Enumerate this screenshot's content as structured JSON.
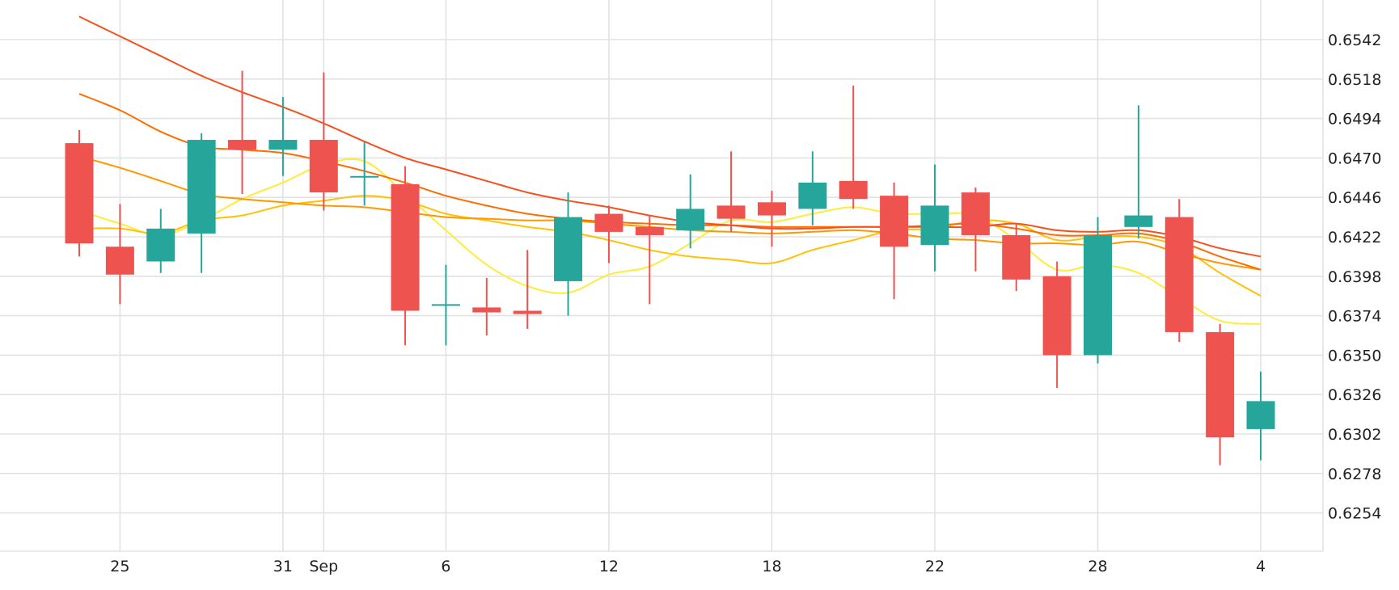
{
  "chart_data": {
    "type": "candlestick",
    "title": "",
    "xlabel": "",
    "ylabel": "",
    "grid": true,
    "colors": {
      "up": "#26a69a",
      "down": "#ef5350",
      "grid": "#e2e2e2"
    },
    "y_ticks": [
      0.6254,
      0.6278,
      0.6302,
      0.6326,
      0.635,
      0.6374,
      0.6398,
      0.6422,
      0.6446,
      0.647,
      0.6494,
      0.6518,
      0.6542
    ],
    "x_ticks": [
      {
        "label": "25",
        "day": 1
      },
      {
        "label": "31",
        "day": 5
      },
      {
        "label": "Sep",
        "day": 6
      },
      {
        "label": "6",
        "day": 9
      },
      {
        "label": "12",
        "day": 13
      },
      {
        "label": "18",
        "day": 17
      },
      {
        "label": "22",
        "day": 21
      },
      {
        "label": "28",
        "day": 25
      },
      {
        "label": "4",
        "day": 29
      }
    ],
    "candles": [
      {
        "day": 0,
        "o": 0.6479,
        "h": 0.6487,
        "l": 0.641,
        "c": 0.6418
      },
      {
        "day": 1,
        "o": 0.6416,
        "h": 0.6442,
        "l": 0.6381,
        "c": 0.6399
      },
      {
        "day": 2,
        "o": 0.6407,
        "h": 0.6439,
        "l": 0.64,
        "c": 0.6427
      },
      {
        "day": 3,
        "o": 0.6424,
        "h": 0.6485,
        "l": 0.64,
        "c": 0.6481
      },
      {
        "day": 4,
        "o": 0.6481,
        "h": 0.6523,
        "l": 0.6448,
        "c": 0.6475
      },
      {
        "day": 5,
        "o": 0.6475,
        "h": 0.6507,
        "l": 0.6459,
        "c": 0.6481
      },
      {
        "day": 6,
        "o": 0.6481,
        "h": 0.6522,
        "l": 0.6438,
        "c": 0.6449
      },
      {
        "day": 7,
        "o": 0.6459,
        "h": 0.648,
        "l": 0.6441,
        "c": 0.6459
      },
      {
        "day": 8,
        "o": 0.6454,
        "h": 0.6465,
        "l": 0.6356,
        "c": 0.6377
      },
      {
        "day": 9,
        "o": 0.6381,
        "h": 0.6405,
        "l": 0.6356,
        "c": 0.6381
      },
      {
        "day": 10,
        "o": 0.6379,
        "h": 0.6397,
        "l": 0.6362,
        "c": 0.6376
      },
      {
        "day": 11,
        "o": 0.6377,
        "h": 0.6414,
        "l": 0.6366,
        "c": 0.6375
      },
      {
        "day": 12,
        "o": 0.6395,
        "h": 0.6449,
        "l": 0.6374,
        "c": 0.6434
      },
      {
        "day": 13,
        "o": 0.6436,
        "h": 0.6441,
        "l": 0.6406,
        "c": 0.6425
      },
      {
        "day": 14,
        "o": 0.6428,
        "h": 0.6435,
        "l": 0.6381,
        "c": 0.6423
      },
      {
        "day": 15,
        "o": 0.6426,
        "h": 0.646,
        "l": 0.6415,
        "c": 0.6439
      },
      {
        "day": 16,
        "o": 0.6441,
        "h": 0.6474,
        "l": 0.6425,
        "c": 0.6433
      },
      {
        "day": 17,
        "o": 0.6443,
        "h": 0.645,
        "l": 0.6416,
        "c": 0.6435
      },
      {
        "day": 18,
        "o": 0.6439,
        "h": 0.6474,
        "l": 0.6429,
        "c": 0.6455
      },
      {
        "day": 19,
        "o": 0.6456,
        "h": 0.6514,
        "l": 0.6439,
        "c": 0.6445
      },
      {
        "day": 20,
        "o": 0.6447,
        "h": 0.6455,
        "l": 0.6384,
        "c": 0.6416
      },
      {
        "day": 21,
        "o": 0.6417,
        "h": 0.6466,
        "l": 0.6401,
        "c": 0.6441
      },
      {
        "day": 22,
        "o": 0.6449,
        "h": 0.6452,
        "l": 0.6401,
        "c": 0.6423
      },
      {
        "day": 23,
        "o": 0.6423,
        "h": 0.643,
        "l": 0.6389,
        "c": 0.6396
      },
      {
        "day": 24,
        "o": 0.6398,
        "h": 0.6407,
        "l": 0.633,
        "c": 0.635
      },
      {
        "day": 25,
        "o": 0.635,
        "h": 0.6434,
        "l": 0.6345,
        "c": 0.6423
      },
      {
        "day": 26,
        "o": 0.6428,
        "h": 0.6502,
        "l": 0.6421,
        "c": 0.6435
      },
      {
        "day": 27,
        "o": 0.6434,
        "h": 0.6445,
        "l": 0.6358,
        "c": 0.6364
      },
      {
        "day": 28,
        "o": 0.6364,
        "h": 0.6369,
        "l": 0.6283,
        "c": 0.63
      },
      {
        "day": 29,
        "o": 0.6305,
        "h": 0.634,
        "l": 0.6286,
        "c": 0.6322
      }
    ],
    "series": [
      {
        "type": "line",
        "color": "#ffeb3b",
        "values": [
          [
            0,
            0.6438
          ],
          [
            1,
            0.643
          ],
          [
            2,
            0.6423
          ],
          [
            3,
            0.6432
          ],
          [
            4,
            0.6445
          ],
          [
            5,
            0.6455
          ],
          [
            6,
            0.6466
          ],
          [
            7,
            0.6468
          ],
          [
            8,
            0.6448
          ],
          [
            9,
            0.6426
          ],
          [
            10,
            0.6405
          ],
          [
            11,
            0.6392
          ],
          [
            12,
            0.6388
          ],
          [
            13,
            0.6399
          ],
          [
            14,
            0.6404
          ],
          [
            15,
            0.6418
          ],
          [
            16,
            0.6432
          ],
          [
            17,
            0.6431
          ],
          [
            18,
            0.6436
          ],
          [
            19,
            0.644
          ],
          [
            20,
            0.6436
          ],
          [
            21,
            0.6436
          ],
          [
            22,
            0.6435
          ],
          [
            23,
            0.642
          ],
          [
            24,
            0.6402
          ],
          [
            25,
            0.6405
          ],
          [
            26,
            0.64
          ],
          [
            27,
            0.6385
          ],
          [
            28,
            0.6371
          ],
          [
            29,
            0.6369
          ]
        ]
      },
      {
        "type": "line",
        "color": "#ffc107",
        "values": [
          [
            0,
            0.6427
          ],
          [
            1,
            0.6427
          ],
          [
            2,
            0.6424
          ],
          [
            3,
            0.6432
          ],
          [
            4,
            0.6435
          ],
          [
            5,
            0.6441
          ],
          [
            6,
            0.6444
          ],
          [
            7,
            0.6447
          ],
          [
            8,
            0.6444
          ],
          [
            9,
            0.6436
          ],
          [
            10,
            0.6432
          ],
          [
            11,
            0.6428
          ],
          [
            12,
            0.6425
          ],
          [
            13,
            0.642
          ],
          [
            14,
            0.6414
          ],
          [
            15,
            0.641
          ],
          [
            16,
            0.6408
          ],
          [
            17,
            0.6406
          ],
          [
            18,
            0.6414
          ],
          [
            19,
            0.642
          ],
          [
            20,
            0.6426
          ],
          [
            21,
            0.6427
          ],
          [
            22,
            0.6432
          ],
          [
            23,
            0.643
          ],
          [
            24,
            0.642
          ],
          [
            25,
            0.6422
          ],
          [
            26,
            0.6422
          ],
          [
            27,
            0.6416
          ],
          [
            28,
            0.64
          ],
          [
            29,
            0.6386
          ]
        ]
      },
      {
        "type": "line",
        "color": "#ff9800",
        "values": [
          [
            0,
            0.6471
          ],
          [
            1,
            0.6464
          ],
          [
            2,
            0.6456
          ],
          [
            3,
            0.6448
          ],
          [
            4,
            0.6445
          ],
          [
            5,
            0.6443
          ],
          [
            6,
            0.6441
          ],
          [
            7,
            0.644
          ],
          [
            8,
            0.6437
          ],
          [
            9,
            0.6434
          ],
          [
            10,
            0.6433
          ],
          [
            11,
            0.6432
          ],
          [
            12,
            0.6432
          ],
          [
            13,
            0.643
          ],
          [
            14,
            0.6428
          ],
          [
            15,
            0.6426
          ],
          [
            16,
            0.6425
          ],
          [
            17,
            0.6424
          ],
          [
            18,
            0.6425
          ],
          [
            19,
            0.6426
          ],
          [
            20,
            0.6424
          ],
          [
            21,
            0.6421
          ],
          [
            22,
            0.642
          ],
          [
            23,
            0.6418
          ],
          [
            24,
            0.6418
          ],
          [
            25,
            0.6417
          ],
          [
            26,
            0.6419
          ],
          [
            27,
            0.6412
          ],
          [
            28,
            0.6406
          ],
          [
            29,
            0.6402
          ]
        ]
      },
      {
        "type": "line",
        "color": "#ff6d00",
        "values": [
          [
            0,
            0.6509
          ],
          [
            1,
            0.6499
          ],
          [
            2,
            0.6486
          ],
          [
            3,
            0.6477
          ],
          [
            4,
            0.6475
          ],
          [
            5,
            0.6473
          ],
          [
            6,
            0.6468
          ],
          [
            7,
            0.6462
          ],
          [
            8,
            0.6455
          ],
          [
            9,
            0.6447
          ],
          [
            10,
            0.6441
          ],
          [
            11,
            0.6436
          ],
          [
            12,
            0.6433
          ],
          [
            13,
            0.6431
          ],
          [
            14,
            0.643
          ],
          [
            15,
            0.6429
          ],
          [
            16,
            0.6429
          ],
          [
            17,
            0.6428
          ],
          [
            18,
            0.6428
          ],
          [
            19,
            0.6428
          ],
          [
            20,
            0.6428
          ],
          [
            21,
            0.6429
          ],
          [
            22,
            0.643
          ],
          [
            23,
            0.6427
          ],
          [
            24,
            0.6423
          ],
          [
            25,
            0.6423
          ],
          [
            26,
            0.6424
          ],
          [
            27,
            0.6419
          ],
          [
            28,
            0.641
          ],
          [
            29,
            0.6402
          ]
        ]
      },
      {
        "type": "line",
        "color": "#f4511e",
        "values": [
          [
            0,
            0.6556
          ],
          [
            1,
            0.6544
          ],
          [
            2,
            0.6532
          ],
          [
            3,
            0.652
          ],
          [
            4,
            0.651
          ],
          [
            5,
            0.6501
          ],
          [
            6,
            0.6491
          ],
          [
            7,
            0.648
          ],
          [
            8,
            0.647
          ],
          [
            9,
            0.6463
          ],
          [
            10,
            0.6456
          ],
          [
            11,
            0.6449
          ],
          [
            12,
            0.6444
          ],
          [
            13,
            0.644
          ],
          [
            14,
            0.6435
          ],
          [
            15,
            0.6431
          ],
          [
            16,
            0.6429
          ],
          [
            17,
            0.6427
          ],
          [
            18,
            0.6427
          ],
          [
            19,
            0.6428
          ],
          [
            20,
            0.6428
          ],
          [
            21,
            0.6428
          ],
          [
            22,
            0.6428
          ],
          [
            23,
            0.643
          ],
          [
            24,
            0.6426
          ],
          [
            25,
            0.6425
          ],
          [
            26,
            0.6426
          ],
          [
            27,
            0.6422
          ],
          [
            28,
            0.6415
          ],
          [
            29,
            0.641
          ]
        ]
      }
    ]
  }
}
